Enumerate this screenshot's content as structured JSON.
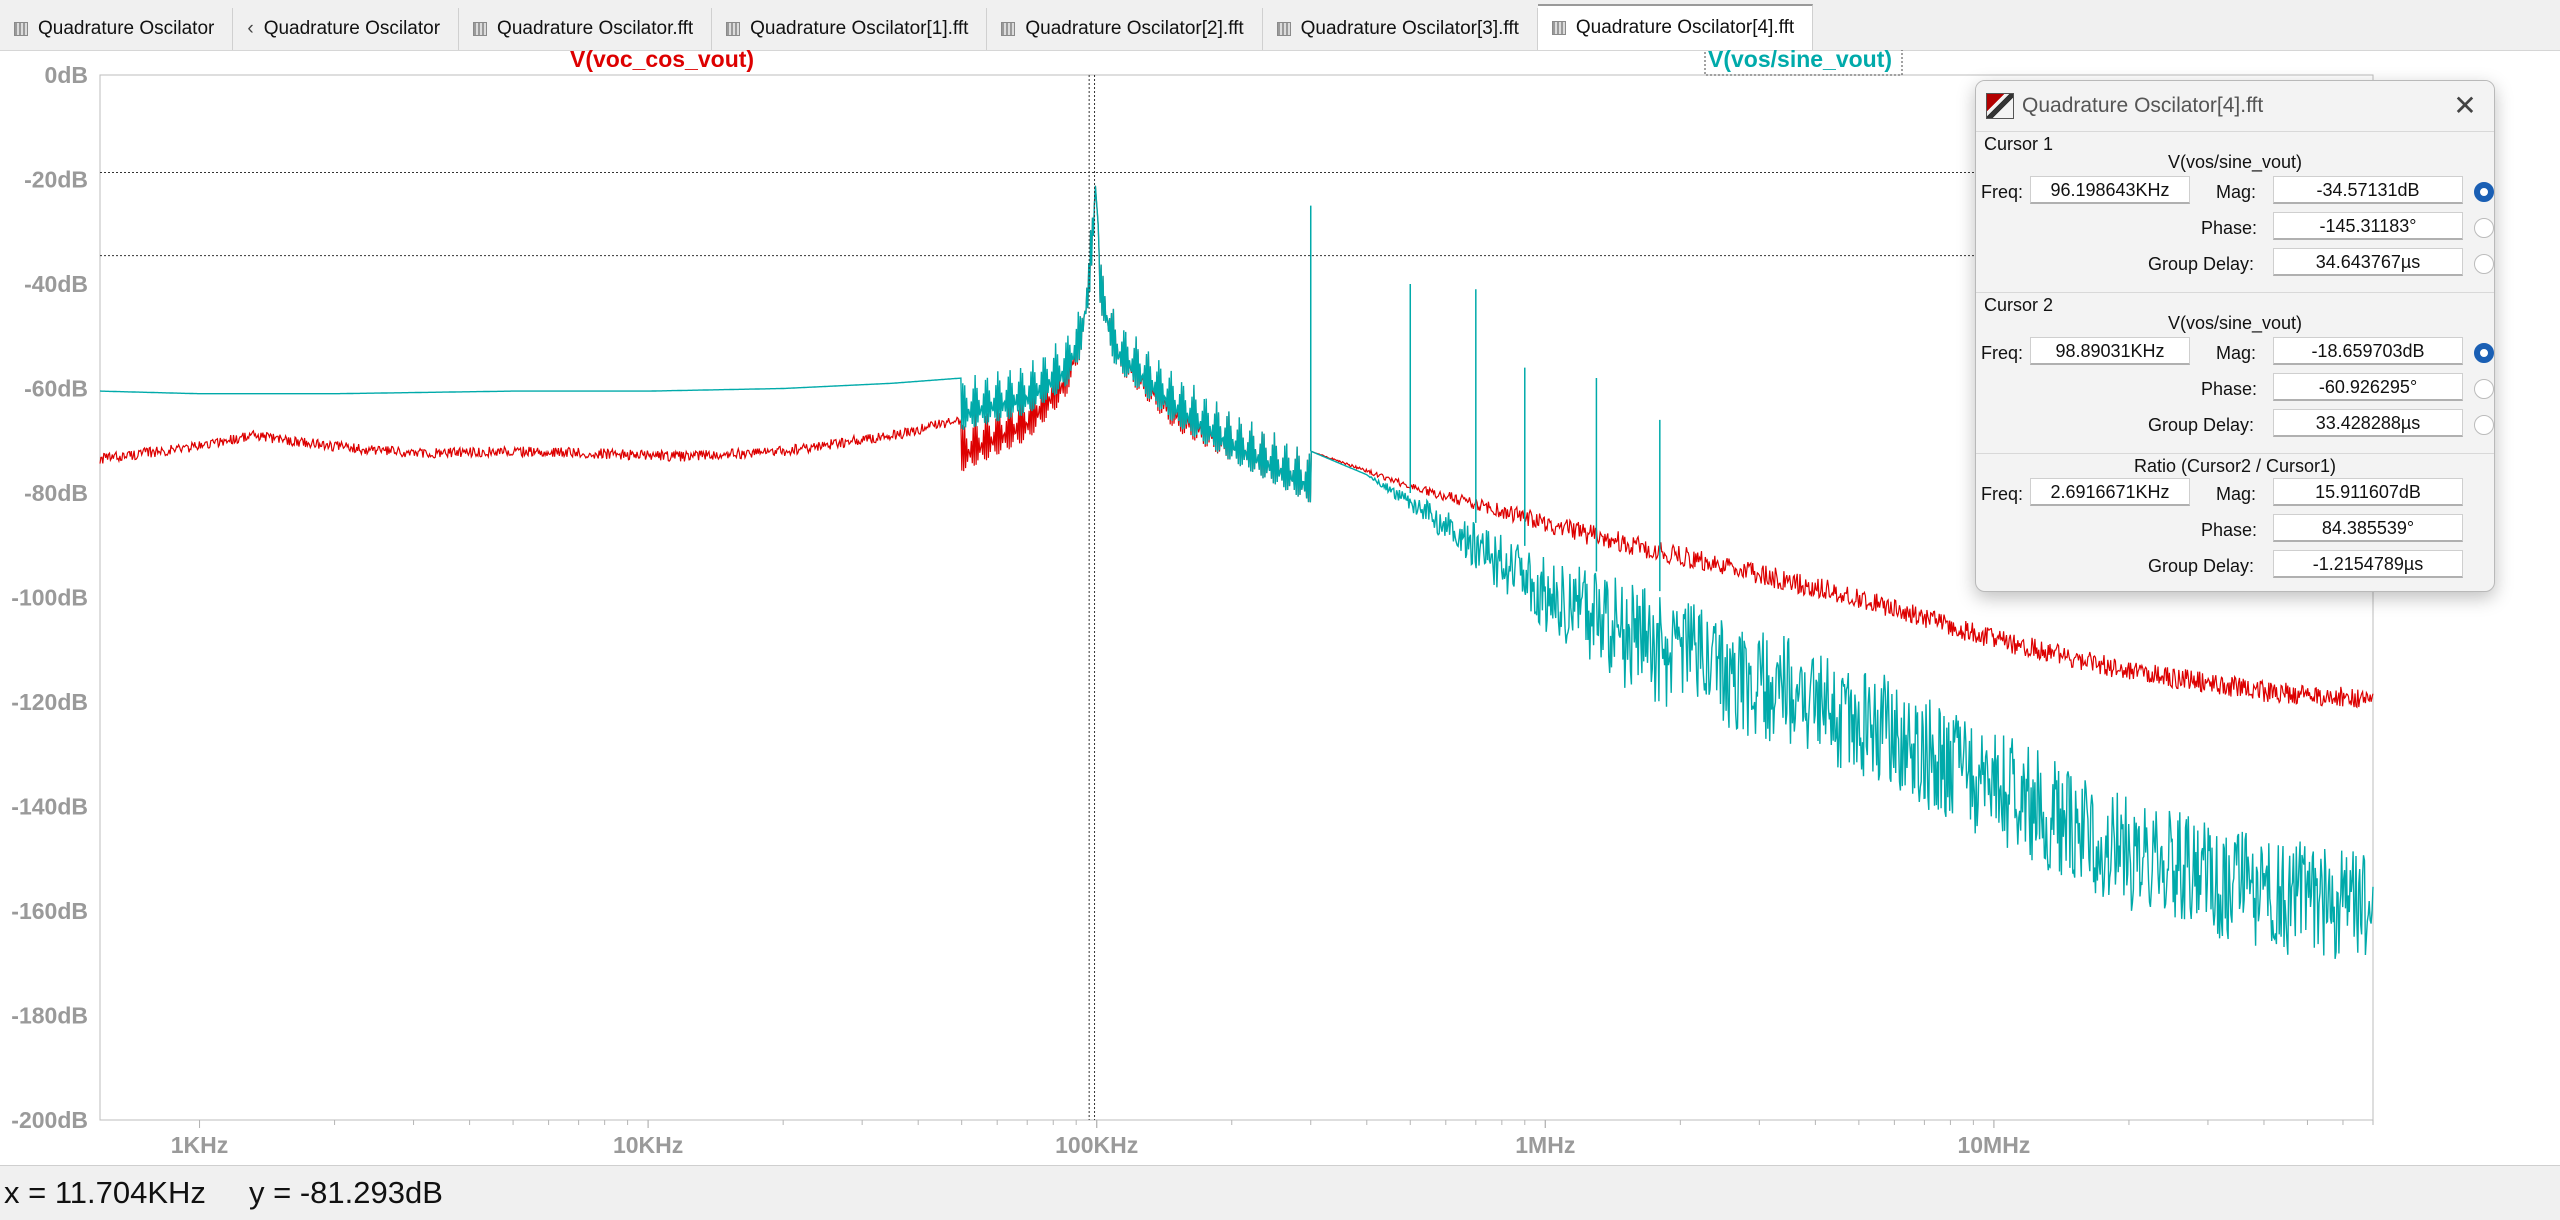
{
  "tabs": [
    {
      "label": "Quadrature Oscilator",
      "icon": "waveform-tab-icon"
    },
    {
      "label": "Quadrature Oscilator",
      "icon": "schematic-tab-icon"
    },
    {
      "label": "Quadrature Oscilator.fft",
      "icon": "waveform-tab-icon"
    },
    {
      "label": "Quadrature Oscilator[1].fft",
      "icon": "waveform-tab-icon"
    },
    {
      "label": "Quadrature Oscilator[2].fft",
      "icon": "waveform-tab-icon"
    },
    {
      "label": "Quadrature Oscilator[3].fft",
      "icon": "waveform-tab-icon"
    },
    {
      "label": "Quadrature Oscilator[4].fft",
      "icon": "waveform-tab-icon",
      "active": true
    }
  ],
  "status": {
    "x": "x = 11.704KHz",
    "y": "y = -81.293dB"
  },
  "cursor_dialog": {
    "title": "Quadrature Oscilator[4].fft",
    "cursor1": {
      "heading": "Cursor 1",
      "trace": "V(vos/sine_vout)",
      "freq_label": "Freq:",
      "freq": "96.198643KHz",
      "mag_label": "Mag:",
      "mag": "-34.57131dB",
      "phase_label": "Phase:",
      "phase": "-145.31183°",
      "gd_label": "Group Delay:",
      "gd": "34.643767µs"
    },
    "cursor2": {
      "heading": "Cursor 2",
      "trace": "V(vos/sine_vout)",
      "freq_label": "Freq:",
      "freq": "98.89031KHz",
      "mag_label": "Mag:",
      "mag": "-18.659703dB",
      "phase_label": "Phase:",
      "phase": "-60.926295°",
      "gd_label": "Group Delay:",
      "gd": "33.428288µs"
    },
    "ratio": {
      "heading": "Ratio (Cursor2 / Cursor1)",
      "freq_label": "Freq:",
      "freq": "2.6916671KHz",
      "mag_label": "Mag:",
      "mag": "15.911607dB",
      "phase_label": "Phase:",
      "phase": "84.385539°",
      "gd_label": "Group Delay:",
      "gd": "-1.2154789µs"
    }
  },
  "chart_data": {
    "type": "line",
    "x_scale": "log",
    "xlim": [
      600,
      70000000
    ],
    "ylim": [
      -200,
      0
    ],
    "x_ticks": [
      {
        "value": 1000,
        "label": "1KHz"
      },
      {
        "value": 10000,
        "label": "10KHz"
      },
      {
        "value": 100000,
        "label": "100KHz"
      },
      {
        "value": 1000000,
        "label": "1MHz"
      },
      {
        "value": 10000000,
        "label": "10MHz"
      }
    ],
    "y_ticks": [
      {
        "value": 0,
        "label": "0dB"
      },
      {
        "value": -20,
        "label": "-20dB"
      },
      {
        "value": -40,
        "label": "-40dB"
      },
      {
        "value": -60,
        "label": "-60dB"
      },
      {
        "value": -80,
        "label": "-80dB"
      },
      {
        "value": -100,
        "label": "-100dB"
      },
      {
        "value": -120,
        "label": "-120dB"
      },
      {
        "value": -140,
        "label": "-140dB"
      },
      {
        "value": -160,
        "label": "-160dB"
      },
      {
        "value": -180,
        "label": "-180dB"
      },
      {
        "value": -200,
        "label": "-200dB"
      }
    ],
    "series": [
      {
        "name": "V(voc_cos_vout)",
        "color": "#dd0000",
        "x": [
          600,
          1000,
          1300,
          2000,
          3000,
          5000,
          8000,
          12000,
          20000,
          35000,
          50000,
          70000,
          85000,
          92000,
          96000,
          98900,
          102000,
          110000,
          150000,
          200000,
          300000,
          500000,
          800000,
          1000000,
          2000000,
          5000000,
          10000000,
          20000000,
          40000000,
          70000000
        ],
        "y": [
          -73.5,
          -71,
          -69,
          -71,
          -72.5,
          -72,
          -72.5,
          -73,
          -72,
          -69,
          -66,
          -60,
          -52,
          -44,
          -34,
          -19,
          -35,
          -46,
          -58,
          -64,
          -72,
          -78,
          -82,
          -84,
          -90,
          -98,
          -106,
          -112,
          -116,
          -117.5
        ]
      },
      {
        "name": "V(vos/sine_vout)",
        "color": "#00aaaa",
        "x": [
          600,
          1000,
          1500,
          2000,
          5000,
          10000,
          20000,
          35000,
          50000,
          70000,
          85000,
          92000,
          96000,
          98900,
          102000,
          110000,
          150000,
          200000,
          300000,
          500000,
          800000,
          1000000,
          2000000,
          5000000,
          10000000,
          20000000,
          40000000,
          70000000
        ],
        "y": [
          -60.5,
          -61,
          -61,
          -61,
          -60.5,
          -60.5,
          -60,
          -59,
          -58,
          -55,
          -50,
          -44,
          -34,
          -19,
          -35,
          -46,
          -57,
          -64,
          -72,
          -80,
          -88,
          -92,
          -100,
          -112,
          -125,
          -138,
          -146,
          -148
        ]
      }
    ],
    "spurs": [
      {
        "x": 300000,
        "y": -25
      },
      {
        "x": 500000,
        "y": -40
      },
      {
        "x": 700000,
        "y": -41
      },
      {
        "x": 900000,
        "y": -56
      },
      {
        "x": 1300000,
        "y": -58
      },
      {
        "x": 1800000,
        "y": -66
      }
    ],
    "cursors": [
      {
        "freq": 96198.643,
        "mag": -34.57131
      },
      {
        "freq": 98890.31,
        "mag": -18.659703
      }
    ]
  }
}
